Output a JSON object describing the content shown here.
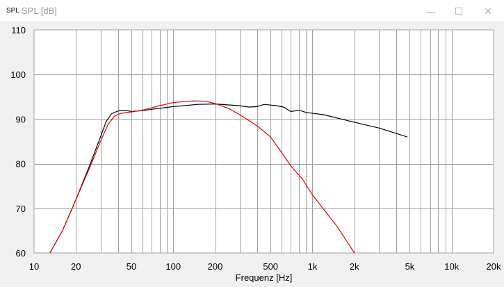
{
  "window": {
    "icon_text": "SPL",
    "title": "SPL [dB]",
    "minimize": "—",
    "maximize": "☐",
    "close": "✕"
  },
  "chart_data": {
    "type": "line",
    "title": "SPL [dB]",
    "xlabel": "Frequenz [Hz]",
    "ylabel": "",
    "xscale": "log",
    "xlim": [
      10,
      20000
    ],
    "ylim": [
      60,
      110
    ],
    "grid": true,
    "x_ticks": [
      {
        "v": 10,
        "label": "10"
      },
      {
        "v": 20,
        "label": "20"
      },
      {
        "v": 50,
        "label": "50"
      },
      {
        "v": 100,
        "label": "100"
      },
      {
        "v": 200,
        "label": "200"
      },
      {
        "v": 500,
        "label": "500"
      },
      {
        "v": 1000,
        "label": "1k"
      },
      {
        "v": 2000,
        "label": "2k"
      },
      {
        "v": 5000,
        "label": "5k"
      },
      {
        "v": 10000,
        "label": "10k"
      },
      {
        "v": 20000,
        "label": "20k"
      }
    ],
    "y_ticks": [
      60,
      70,
      80,
      90,
      100,
      110
    ],
    "series": [
      {
        "name": "black",
        "color": "#000000",
        "points": [
          [
            13,
            60
          ],
          [
            16,
            65
          ],
          [
            20,
            72
          ],
          [
            25,
            79.5
          ],
          [
            30,
            86
          ],
          [
            33,
            89.5
          ],
          [
            36,
            91.2
          ],
          [
            40,
            91.8
          ],
          [
            45,
            92
          ],
          [
            50,
            91.7
          ],
          [
            60,
            91.9
          ],
          [
            70,
            92.2
          ],
          [
            100,
            92.8
          ],
          [
            150,
            93.3
          ],
          [
            200,
            93.4
          ],
          [
            300,
            93
          ],
          [
            350,
            92.7
          ],
          [
            400,
            92.8
          ],
          [
            450,
            93.3
          ],
          [
            550,
            93
          ],
          [
            620,
            92.7
          ],
          [
            700,
            91.7
          ],
          [
            800,
            92
          ],
          [
            900,
            91.5
          ],
          [
            1200,
            91
          ],
          [
            2000,
            89.3
          ],
          [
            3000,
            88
          ],
          [
            4800,
            86
          ]
        ]
      },
      {
        "name": "red",
        "color": "#e00000",
        "points": [
          [
            13,
            60
          ],
          [
            16,
            65
          ],
          [
            20,
            72
          ],
          [
            25,
            79
          ],
          [
            30,
            85
          ],
          [
            34,
            88.8
          ],
          [
            38,
            90.7
          ],
          [
            42,
            91.3
          ],
          [
            50,
            91.6
          ],
          [
            60,
            92
          ],
          [
            80,
            93
          ],
          [
            100,
            93.7
          ],
          [
            140,
            94.1
          ],
          [
            170,
            94
          ],
          [
            200,
            93.5
          ],
          [
            250,
            92.4
          ],
          [
            300,
            91
          ],
          [
            400,
            88.5
          ],
          [
            500,
            86
          ],
          [
            600,
            82.5
          ],
          [
            700,
            79.5
          ],
          [
            850,
            76.5
          ],
          [
            1000,
            73
          ],
          [
            1500,
            66
          ],
          [
            2000,
            60
          ]
        ]
      }
    ]
  }
}
